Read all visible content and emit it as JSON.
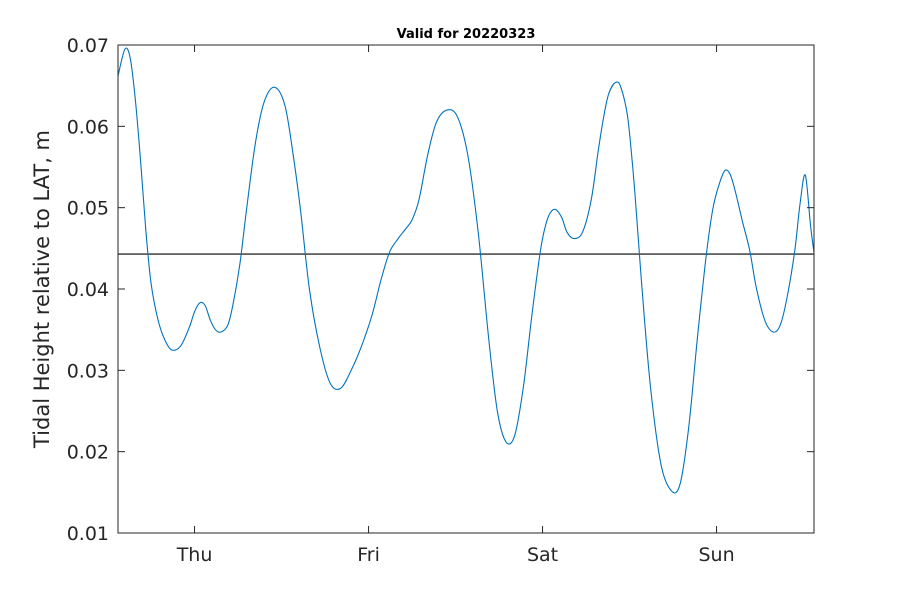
{
  "chart_data": {
    "type": "line",
    "title": "Valid for 20220323",
    "xlabel": "",
    "ylabel": "Tidal Height relative to LAT, m",
    "xlim": [
      -0.44,
      3.56
    ],
    "ylim": [
      0.01,
      0.07
    ],
    "x_ticks": [
      {
        "value": 0,
        "label": "Thu"
      },
      {
        "value": 1,
        "label": "Fri"
      },
      {
        "value": 2,
        "label": "Sat"
      },
      {
        "value": 3,
        "label": "Sun"
      }
    ],
    "y_ticks": [
      {
        "value": 0.07,
        "label": "0.07"
      },
      {
        "value": 0.06,
        "label": "0.06"
      },
      {
        "value": 0.05,
        "label": "0.05"
      },
      {
        "value": 0.04,
        "label": "0.04"
      },
      {
        "value": 0.03,
        "label": "0.03"
      },
      {
        "value": 0.02,
        "label": "0.02"
      },
      {
        "value": 0.01,
        "label": "0.01"
      }
    ],
    "grid": false,
    "reference_line": {
      "y": 0.0443,
      "color": "#000000"
    },
    "series": [
      {
        "color": "#0072BD",
        "x": [
          -0.44,
          -0.4,
          -0.37,
          -0.34,
          -0.31,
          -0.28,
          -0.25,
          -0.21,
          -0.17,
          -0.13,
          -0.08,
          -0.03,
          0.0,
          0.03,
          0.06,
          0.09,
          0.12,
          0.15,
          0.19,
          0.22,
          0.26,
          0.3,
          0.35,
          0.4,
          0.46,
          0.52,
          0.57,
          0.61,
          0.66,
          0.72,
          0.78,
          0.84,
          0.9,
          0.96,
          1.02,
          1.07,
          1.12,
          1.17,
          1.21,
          1.25,
          1.29,
          1.34,
          1.39,
          1.45,
          1.51,
          1.57,
          1.63,
          1.69,
          1.74,
          1.79,
          1.84,
          1.89,
          1.94,
          1.99,
          2.03,
          2.07,
          2.11,
          2.14,
          2.18,
          2.23,
          2.28,
          2.32,
          2.35,
          2.38,
          2.42,
          2.45,
          2.49,
          2.53,
          2.57,
          2.62,
          2.68,
          2.74,
          2.79,
          2.84,
          2.89,
          2.94,
          2.98,
          3.02,
          3.05,
          3.08,
          3.11,
          3.15,
          3.19,
          3.23,
          3.28,
          3.33,
          3.37,
          3.41,
          3.45,
          3.48,
          3.51,
          3.54,
          3.56
        ],
        "y": [
          0.0662,
          0.0695,
          0.0684,
          0.0632,
          0.0557,
          0.0472,
          0.0407,
          0.0362,
          0.0337,
          0.0325,
          0.033,
          0.0353,
          0.0372,
          0.0383,
          0.038,
          0.0362,
          0.035,
          0.0347,
          0.0355,
          0.038,
          0.043,
          0.05,
          0.058,
          0.063,
          0.0648,
          0.0625,
          0.056,
          0.0495,
          0.04,
          0.0328,
          0.0284,
          0.0278,
          0.03,
          0.033,
          0.0368,
          0.041,
          0.0445,
          0.0462,
          0.0473,
          0.0485,
          0.051,
          0.0565,
          0.0605,
          0.062,
          0.0612,
          0.0565,
          0.047,
          0.034,
          0.025,
          0.0212,
          0.022,
          0.028,
          0.037,
          0.045,
          0.0487,
          0.0498,
          0.0488,
          0.047,
          0.0462,
          0.047,
          0.051,
          0.057,
          0.061,
          0.064,
          0.0654,
          0.0648,
          0.061,
          0.052,
          0.0405,
          0.028,
          0.0185,
          0.0152,
          0.016,
          0.023,
          0.034,
          0.044,
          0.05,
          0.0532,
          0.0546,
          0.054,
          0.0518,
          0.0482,
          0.0448,
          0.04,
          0.036,
          0.0347,
          0.0358,
          0.0395,
          0.0448,
          0.0505,
          0.054,
          0.0478,
          0.0445
        ]
      }
    ]
  }
}
